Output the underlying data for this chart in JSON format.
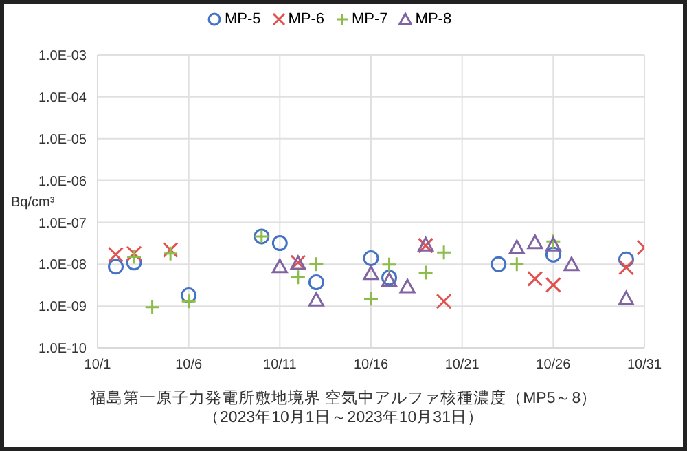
{
  "chart_data": {
    "type": "scatter",
    "title": "福島第一原子力発電所敷地境界  空気中アルファ核種濃度（MP5～8）",
    "subtitle": "（2023年10月1日～2023年10月31日）",
    "ylabel": "Bq/cm³",
    "log": "y",
    "grid": true,
    "legend": "top",
    "xlim": [
      "--10-01",
      "--10-31"
    ],
    "xticks": [
      {
        "value": "--10-01",
        "label": "10/1"
      },
      {
        "value": "--10-06",
        "label": "10/6"
      },
      {
        "value": "--10-11",
        "label": "10/11"
      },
      {
        "value": "--10-16",
        "label": "10/16"
      },
      {
        "value": "--10-21",
        "label": "10/21"
      },
      {
        "value": "--10-26",
        "label": "10/26"
      },
      {
        "value": "--10-31",
        "label": "10/31"
      }
    ],
    "ylim": [
      1e-10,
      0.001
    ],
    "yticks": [
      {
        "value": 1e-10,
        "label": "1.0E-10"
      },
      {
        "value": 1e-09,
        "label": "1.0E-09"
      },
      {
        "value": 1e-08,
        "label": "1.0E-08"
      },
      {
        "value": 1e-07,
        "label": "1.0E-07"
      },
      {
        "value": 1e-06,
        "label": "1.0E-06"
      },
      {
        "value": 1e-05,
        "label": "1.0E-05"
      },
      {
        "value": 0.0001,
        "label": "1.0E-04"
      },
      {
        "value": 0.001,
        "label": "1.0E-03"
      }
    ],
    "series": [
      {
        "name": "MP-5",
        "color": "#4472c4",
        "marker": "circle",
        "x": [
          "--10-02",
          "--10-03",
          "--10-06",
          "--10-10",
          "--10-11",
          "--10-13",
          "--10-16",
          "--10-17",
          "--10-23",
          "--10-26",
          "--10-30"
        ],
        "values": [
          8.8e-09,
          1.1e-08,
          1.8e-09,
          4.6e-08,
          3.2e-08,
          3.7e-09,
          1.4e-08,
          4.8e-09,
          1e-08,
          1.7e-08,
          1.3e-08
        ]
      },
      {
        "name": "MP-6",
        "color": "#e0524f",
        "marker": "x",
        "x": [
          "--10-02",
          "--10-03",
          "--10-05",
          "--10-12",
          "--10-19",
          "--10-20",
          "--10-25",
          "--10-26",
          "--10-30",
          "--10-31"
        ],
        "values": [
          1.7e-08,
          1.8e-08,
          2.2e-08,
          1.1e-08,
          2.8e-08,
          1.3e-09,
          4.5e-09,
          3.2e-09,
          8.4e-09,
          2.5e-08
        ]
      },
      {
        "name": "MP-7",
        "color": "#8cbd4a",
        "marker": "cross",
        "x": [
          "--10-03",
          "--10-04",
          "--10-05",
          "--10-06",
          "--10-10",
          "--10-12",
          "--10-13",
          "--10-16",
          "--10-17",
          "--10-19",
          "--10-20",
          "--10-24",
          "--10-26"
        ],
        "values": [
          1.5e-08,
          9.4e-10,
          1.8e-08,
          1.3e-09,
          4.6e-08,
          4.9e-09,
          1e-08,
          1.5e-09,
          9.8e-09,
          6.3e-09,
          1.9e-08,
          1e-08,
          3.5e-08
        ]
      },
      {
        "name": "MP-8",
        "color": "#8064a2",
        "marker": "triangle",
        "x": [
          "--10-11",
          "--10-12",
          "--10-13",
          "--10-16",
          "--10-17",
          "--10-18",
          "--10-19",
          "--10-24",
          "--10-25",
          "--10-26",
          "--10-27",
          "--10-30"
        ],
        "values": [
          8.8e-09,
          1.05e-08,
          1.4e-09,
          6e-09,
          4.1e-09,
          2.9e-09,
          2.9e-08,
          2.5e-08,
          3.3e-08,
          2.9e-08,
          9.8e-09,
          1.5e-09
        ]
      }
    ]
  }
}
